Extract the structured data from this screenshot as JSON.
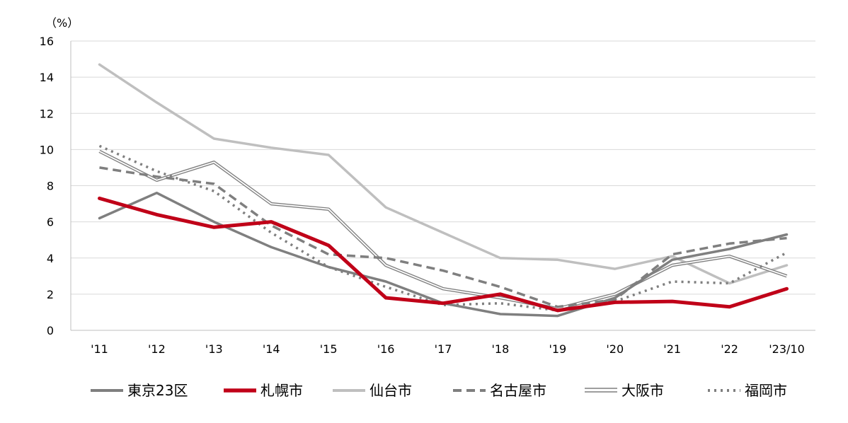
{
  "chart_data": {
    "type": "line",
    "unit_label": "（%）",
    "categories": [
      "'11",
      "'12",
      "'13",
      "'14",
      "'15",
      "'16",
      "'17",
      "'18",
      "'19",
      "'20",
      "'21",
      "'22",
      "'23/10"
    ],
    "ylim": [
      0,
      16
    ],
    "yticks": [
      0,
      2,
      4,
      6,
      8,
      10,
      12,
      14,
      16
    ],
    "grid": true,
    "legend_position": "bottom",
    "series": [
      {
        "name": "東京23区",
        "style": "thick-solid",
        "color": "#7f7f7f",
        "values": [
          6.2,
          7.6,
          6.0,
          4.6,
          3.5,
          2.7,
          1.5,
          0.9,
          0.8,
          1.8,
          3.9,
          4.5,
          5.3
        ]
      },
      {
        "name": "札幌市",
        "style": "bold-solid",
        "color": "#c00018",
        "values": [
          7.3,
          6.4,
          5.7,
          6.0,
          4.7,
          1.8,
          1.5,
          2.0,
          1.1,
          1.55,
          1.6,
          1.3,
          2.3
        ]
      },
      {
        "name": "仙台市",
        "style": "light-solid",
        "color": "#bfbfbf",
        "values": [
          14.7,
          12.6,
          10.6,
          10.1,
          9.7,
          6.8,
          5.4,
          4.0,
          3.9,
          3.4,
          4.1,
          2.6,
          3.6
        ]
      },
      {
        "name": "名古屋市",
        "style": "dashed",
        "color": "#7f7f7f",
        "values": [
          9.0,
          8.5,
          8.1,
          5.8,
          4.2,
          4.0,
          3.3,
          2.4,
          1.3,
          1.7,
          4.2,
          4.8,
          5.1
        ]
      },
      {
        "name": "大阪市",
        "style": "double",
        "color": "#7f7f7f",
        "values": [
          9.9,
          8.3,
          9.3,
          7.0,
          6.7,
          3.6,
          2.3,
          1.8,
          1.2,
          2.0,
          3.6,
          4.1,
          3.0
        ]
      },
      {
        "name": "福岡市",
        "style": "dotted",
        "color": "#7f7f7f",
        "values": [
          10.2,
          8.8,
          7.7,
          5.4,
          3.5,
          2.4,
          1.4,
          1.5,
          1.1,
          1.6,
          2.7,
          2.6,
          4.3
        ]
      }
    ]
  }
}
